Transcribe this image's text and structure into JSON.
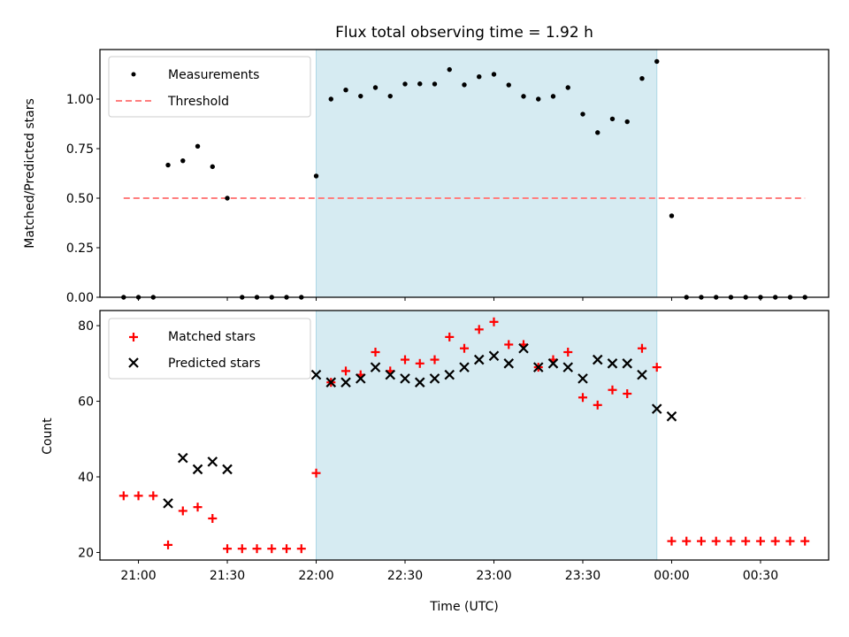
{
  "chart_data": [
    {
      "id": "ratio",
      "type": "scatter",
      "title": "Flux total observing time = 1.92 h",
      "xlabel": "",
      "ylabel": "Matched/Predicted stars",
      "ylim": [
        0,
        1.25
      ],
      "yticks": [
        0,
        0.25,
        0.5,
        0.75,
        1.0
      ],
      "ytick_labels": [
        "0.00",
        "0.25",
        "0.50",
        "0.75",
        "1.00"
      ],
      "shaded_interval": [
        "22:00",
        "23:55"
      ],
      "shade_color": "#add8e6",
      "threshold": 0.5,
      "threshold_range": [
        "20:55",
        "00:45"
      ],
      "legend": {
        "placement": "upper-left",
        "entries": [
          {
            "label": "Measurements",
            "marker": "dot",
            "color": "#000000"
          },
          {
            "label": "Threshold",
            "marker": "dashed-line",
            "color": "#ff7f7f"
          }
        ]
      },
      "series": [
        {
          "name": "Measurements",
          "color": "#000000",
          "x": [
            "20:55",
            "21:00",
            "21:05",
            "21:10",
            "21:15",
            "21:20",
            "21:25",
            "21:30",
            "21:35",
            "21:40",
            "21:45",
            "21:50",
            "21:55",
            "22:00",
            "22:05",
            "22:10",
            "22:15",
            "22:20",
            "22:25",
            "22:30",
            "22:35",
            "22:40",
            "22:45",
            "22:50",
            "22:55",
            "23:00",
            "23:05",
            "23:10",
            "23:15",
            "23:20",
            "23:25",
            "23:30",
            "23:35",
            "23:40",
            "23:45",
            "23:50",
            "23:55",
            "00:00",
            "00:05",
            "00:10",
            "00:15",
            "00:20",
            "00:25",
            "00:30",
            "00:35",
            "00:40",
            "00:45"
          ],
          "values": [
            0,
            0,
            0,
            0.667,
            0.689,
            0.762,
            0.659,
            0.5,
            0,
            0,
            0,
            0,
            0,
            0.612,
            1.0,
            1.046,
            1.015,
            1.058,
            1.015,
            1.076,
            1.077,
            1.076,
            1.149,
            1.072,
            1.113,
            1.125,
            1.071,
            1.014,
            1.0,
            1.014,
            1.058,
            0.924,
            0.831,
            0.9,
            0.886,
            1.104,
            1.19,
            0.411,
            0,
            0,
            0,
            0,
            0,
            0,
            0,
            0,
            0
          ]
        }
      ]
    },
    {
      "id": "counts",
      "type": "scatter",
      "title": "",
      "xlabel": "Time (UTC)",
      "ylabel": "Count",
      "ylim": [
        18,
        84
      ],
      "yticks": [
        20,
        40,
        60,
        80
      ],
      "ytick_labels": [
        "20",
        "40",
        "60",
        "80"
      ],
      "xlim": [
        "20:47",
        "00:53"
      ],
      "xticks": [
        "21:00",
        "21:30",
        "22:00",
        "22:30",
        "23:00",
        "23:30",
        "00:00",
        "00:30"
      ],
      "shaded_interval": [
        "22:00",
        "23:55"
      ],
      "shade_color": "#add8e6",
      "legend": {
        "placement": "upper-left",
        "entries": [
          {
            "label": "Matched stars",
            "marker": "plus",
            "color": "#ff0000"
          },
          {
            "label": "Predicted stars",
            "marker": "x",
            "color": "#000000"
          }
        ]
      },
      "series": [
        {
          "name": "Matched stars",
          "marker": "plus",
          "color": "#ff0000",
          "x": [
            "20:55",
            "21:00",
            "21:05",
            "21:10",
            "21:15",
            "21:20",
            "21:25",
            "21:30",
            "21:35",
            "21:40",
            "21:45",
            "21:50",
            "21:55",
            "22:00",
            "22:05",
            "22:10",
            "22:15",
            "22:20",
            "22:25",
            "22:30",
            "22:35",
            "22:40",
            "22:45",
            "22:50",
            "22:55",
            "23:00",
            "23:05",
            "23:10",
            "23:15",
            "23:20",
            "23:25",
            "23:30",
            "23:35",
            "23:40",
            "23:45",
            "23:50",
            "23:55",
            "00:00",
            "00:05",
            "00:10",
            "00:15",
            "00:20",
            "00:25",
            "00:30",
            "00:35",
            "00:40",
            "00:45"
          ],
          "values": [
            35,
            35,
            35,
            22,
            31,
            32,
            29,
            21,
            21,
            21,
            21,
            21,
            21,
            41,
            65,
            68,
            67,
            73,
            68,
            71,
            70,
            71,
            77,
            74,
            79,
            81,
            75,
            75,
            69,
            71,
            73,
            61,
            59,
            63,
            62,
            74,
            69,
            23,
            23,
            23,
            23,
            23,
            23,
            23,
            23,
            23,
            23
          ]
        },
        {
          "name": "Predicted stars",
          "marker": "x",
          "color": "#000000",
          "x": [
            "21:10",
            "21:15",
            "21:20",
            "21:25",
            "21:30",
            "22:00",
            "22:05",
            "22:10",
            "22:15",
            "22:20",
            "22:25",
            "22:30",
            "22:35",
            "22:40",
            "22:45",
            "22:50",
            "22:55",
            "23:00",
            "23:05",
            "23:10",
            "23:15",
            "23:20",
            "23:25",
            "23:30",
            "23:35",
            "23:40",
            "23:45",
            "23:50",
            "23:55",
            "00:00"
          ],
          "values": [
            33,
            45,
            42,
            44,
            42,
            67,
            65,
            65,
            66,
            69,
            67,
            66,
            65,
            66,
            67,
            69,
            71,
            72,
            70,
            74,
            69,
            70,
            69,
            66,
            71,
            70,
            70,
            67,
            58,
            56
          ]
        }
      ]
    }
  ]
}
